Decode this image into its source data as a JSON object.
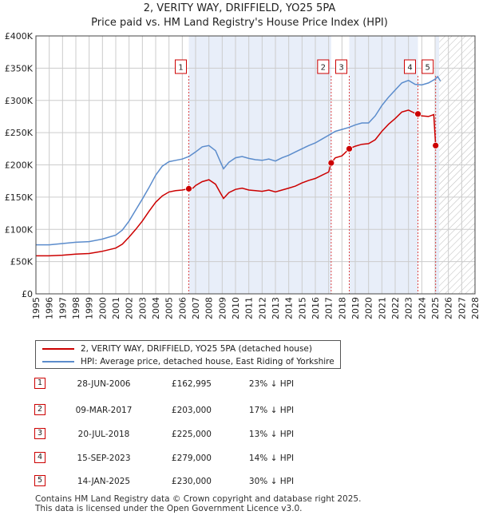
{
  "chart_data": {
    "type": "line",
    "title": "2, VERITY WAY, DRIFFIELD, YO25 5PA",
    "subtitle": "Price paid vs. HM Land Registry's House Price Index (HPI)",
    "xlim": [
      1995,
      2028
    ],
    "ylim": [
      0,
      400000
    ],
    "x_ticks": [
      "1995",
      "1996",
      "1997",
      "1998",
      "1999",
      "2000",
      "2001",
      "2002",
      "2003",
      "2004",
      "2005",
      "2006",
      "2007",
      "2008",
      "2009",
      "2010",
      "2011",
      "2012",
      "2013",
      "2014",
      "2015",
      "2016",
      "2017",
      "2018",
      "2019",
      "2020",
      "2021",
      "2022",
      "2023",
      "2024",
      "2025",
      "2026",
      "2027",
      "2028"
    ],
    "y_ticks": [
      {
        "value": 0,
        "label": "£0"
      },
      {
        "value": 50000,
        "label": "£50K"
      },
      {
        "value": 100000,
        "label": "£100K"
      },
      {
        "value": 150000,
        "label": "£150K"
      },
      {
        "value": 200000,
        "label": "£200K"
      },
      {
        "value": 250000,
        "label": "£250K"
      },
      {
        "value": 300000,
        "label": "£300K"
      },
      {
        "value": 350000,
        "label": "£350K"
      },
      {
        "value": 400000,
        "label": "£400K"
      }
    ],
    "grid": true,
    "forecast_start": 2025.3,
    "colors": {
      "property": "#cc0000",
      "hpi": "#5b8ccc",
      "shade": "#e8eef9",
      "grid": "#cccccc",
      "hatch": "#bbbbbb"
    },
    "series": [
      {
        "name": "2, VERITY WAY, DRIFFIELD, YO25 5PA (detached house)",
        "color": "#cc0000",
        "points": [
          [
            1995.0,
            59000
          ],
          [
            1996.0,
            59000
          ],
          [
            1997.0,
            60000
          ],
          [
            1998.0,
            61500
          ],
          [
            1999.0,
            62500
          ],
          [
            2000.0,
            66000
          ],
          [
            2001.0,
            71000
          ],
          [
            2001.5,
            77000
          ],
          [
            2002.0,
            88000
          ],
          [
            2002.5,
            100000
          ],
          [
            2003.0,
            113000
          ],
          [
            2003.5,
            128000
          ],
          [
            2004.0,
            142000
          ],
          [
            2004.5,
            152000
          ],
          [
            2005.0,
            158000
          ],
          [
            2005.5,
            160000
          ],
          [
            2006.0,
            161000
          ],
          [
            2006.49,
            162995
          ],
          [
            2006.8,
            164000
          ],
          [
            2007.0,
            168000
          ],
          [
            2007.5,
            174000
          ],
          [
            2008.0,
            177000
          ],
          [
            2008.5,
            170000
          ],
          [
            2008.9,
            155000
          ],
          [
            2009.1,
            148000
          ],
          [
            2009.5,
            157000
          ],
          [
            2010.0,
            162000
          ],
          [
            2010.5,
            164000
          ],
          [
            2011.0,
            161000
          ],
          [
            2011.5,
            160000
          ],
          [
            2012.0,
            159000
          ],
          [
            2012.5,
            161000
          ],
          [
            2013.0,
            158000
          ],
          [
            2013.5,
            161000
          ],
          [
            2014.0,
            164000
          ],
          [
            2014.5,
            167000
          ],
          [
            2015.0,
            172000
          ],
          [
            2015.5,
            176000
          ],
          [
            2016.0,
            179000
          ],
          [
            2016.5,
            184000
          ],
          [
            2017.0,
            189000
          ],
          [
            2017.19,
            203000
          ],
          [
            2017.5,
            211000
          ],
          [
            2018.0,
            214000
          ],
          [
            2018.55,
            225000
          ],
          [
            2019.0,
            229000
          ],
          [
            2019.5,
            232000
          ],
          [
            2020.0,
            233000
          ],
          [
            2020.5,
            239000
          ],
          [
            2021.0,
            252000
          ],
          [
            2021.5,
            263000
          ],
          [
            2022.0,
            272000
          ],
          [
            2022.5,
            282000
          ],
          [
            2023.0,
            285000
          ],
          [
            2023.5,
            280000
          ],
          [
            2023.71,
            279000
          ],
          [
            2024.0,
            276000
          ],
          [
            2024.5,
            275000
          ],
          [
            2024.9,
            278000
          ],
          [
            2025.04,
            230000
          ],
          [
            2025.2,
            231000
          ]
        ]
      },
      {
        "name": "HPI: Average price, detached house, East Riding of Yorkshire",
        "color": "#5b8ccc",
        "points": [
          [
            1995.0,
            76000
          ],
          [
            1996.0,
            76000
          ],
          [
            1997.0,
            78000
          ],
          [
            1998.0,
            80000
          ],
          [
            1999.0,
            81000
          ],
          [
            2000.0,
            85000
          ],
          [
            2001.0,
            91000
          ],
          [
            2001.5,
            99000
          ],
          [
            2002.0,
            113000
          ],
          [
            2002.5,
            130000
          ],
          [
            2003.0,
            147000
          ],
          [
            2003.5,
            165000
          ],
          [
            2004.0,
            184000
          ],
          [
            2004.5,
            198000
          ],
          [
            2005.0,
            205000
          ],
          [
            2005.5,
            207000
          ],
          [
            2006.0,
            209000
          ],
          [
            2006.5,
            213000
          ],
          [
            2007.0,
            220000
          ],
          [
            2007.5,
            228000
          ],
          [
            2008.0,
            230000
          ],
          [
            2008.5,
            222000
          ],
          [
            2008.9,
            203000
          ],
          [
            2009.1,
            194000
          ],
          [
            2009.5,
            204000
          ],
          [
            2010.0,
            211000
          ],
          [
            2010.5,
            213000
          ],
          [
            2011.0,
            210000
          ],
          [
            2011.5,
            208000
          ],
          [
            2012.0,
            207000
          ],
          [
            2012.5,
            209000
          ],
          [
            2013.0,
            206000
          ],
          [
            2013.5,
            211000
          ],
          [
            2014.0,
            215000
          ],
          [
            2014.5,
            220000
          ],
          [
            2015.0,
            225000
          ],
          [
            2015.5,
            230000
          ],
          [
            2016.0,
            234000
          ],
          [
            2016.5,
            240000
          ],
          [
            2017.0,
            246000
          ],
          [
            2017.5,
            252000
          ],
          [
            2018.0,
            255000
          ],
          [
            2018.5,
            258000
          ],
          [
            2019.0,
            262000
          ],
          [
            2019.5,
            265000
          ],
          [
            2020.0,
            265000
          ],
          [
            2020.5,
            276000
          ],
          [
            2021.0,
            292000
          ],
          [
            2021.5,
            305000
          ],
          [
            2022.0,
            316000
          ],
          [
            2022.5,
            327000
          ],
          [
            2023.0,
            331000
          ],
          [
            2023.5,
            325000
          ],
          [
            2024.0,
            324000
          ],
          [
            2024.5,
            327000
          ],
          [
            2025.0,
            333000
          ],
          [
            2025.2,
            337000
          ],
          [
            2025.4,
            330000
          ]
        ]
      }
    ],
    "sales": [
      {
        "id": "1",
        "x": 2006.49,
        "price": 162995,
        "date": "28-JUN-2006",
        "price_label": "£162,995",
        "hpi_label": "23% ↓ HPI"
      },
      {
        "id": "2",
        "x": 2017.19,
        "price": 203000,
        "date": "09-MAR-2017",
        "price_label": "£203,000",
        "hpi_label": "17% ↓ HPI"
      },
      {
        "id": "3",
        "x": 2018.55,
        "price": 225000,
        "date": "20-JUL-2018",
        "price_label": "£225,000",
        "hpi_label": "13% ↓ HPI"
      },
      {
        "id": "4",
        "x": 2023.71,
        "price": 279000,
        "date": "15-SEP-2023",
        "price_label": "£279,000",
        "hpi_label": "14% ↓ HPI"
      },
      {
        "id": "5",
        "x": 2025.04,
        "price": 230000,
        "date": "14-JAN-2025",
        "price_label": "£230,000",
        "hpi_label": "30% ↓ HPI"
      }
    ]
  },
  "legend": {
    "property_label": "2, VERITY WAY, DRIFFIELD, YO25 5PA (detached house)",
    "hpi_label": "HPI: Average price, detached house, East Riding of Yorkshire"
  },
  "footer": {
    "line1": "Contains HM Land Registry data © Crown copyright and database right 2025.",
    "line2": "This data is licensed under the Open Government Licence v3.0."
  }
}
